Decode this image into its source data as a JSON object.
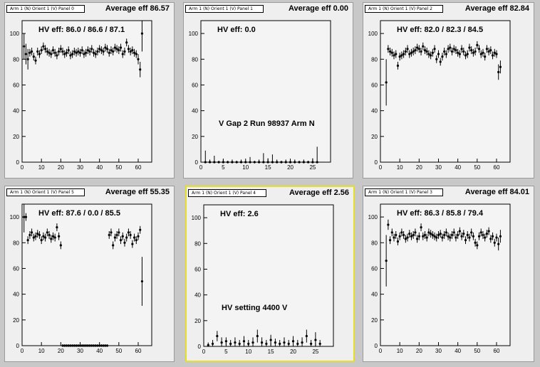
{
  "canvas_bg": "#c8c8c8",
  "pad_bg": "#efefef",
  "active_border": "#e6e02a",
  "panels": [
    {
      "title": "Arm 1 (N) Orient 1 (V) Panel 0",
      "average": "Average eff 86.57",
      "hv": "HV eff:   86.0 / 86.6 / 87.1",
      "note": "",
      "active": false
    },
    {
      "title": "Arm 1 (N) Orient 1 (V) Panel 1",
      "average": "Average eff 0.00",
      "hv": "HV eff:   0.0",
      "note": "V Gap 2 Run 98937 Arm N",
      "active": false
    },
    {
      "title": "Arm 1 (N) Orient 1 (V) Panel 2",
      "average": "Average eff 82.84",
      "hv": "HV eff:   82.0 / 82.3 / 84.5",
      "note": "",
      "active": false
    },
    {
      "title": "Arm 1 (N) Orient 1 (V) Panel 5",
      "average": "Average eff 55.35",
      "hv": "HV eff:   87.6 / 0.0 / 85.5",
      "note": "",
      "active": false
    },
    {
      "title": "Arm 1 (N) Orient 1 (V) Panel 4",
      "average": "Average eff 2.56",
      "hv": "HV eff:   2.6",
      "note": "HV setting 4400 V",
      "active": true
    },
    {
      "title": "Arm 1 (N) Orient 1 (V) Panel 3",
      "average": "Average eff 84.01",
      "hv": "HV eff:   86.3 / 85.8 / 79.4",
      "note": "",
      "active": false
    }
  ],
  "chart_data": [
    {
      "type": "scatter",
      "title": "Arm 1 (N) Orient 1 (V) Panel 0",
      "xlim": [
        0,
        67
      ],
      "ylim": [
        0,
        110
      ],
      "x_ticks": [
        0,
        10,
        20,
        30,
        40,
        50,
        60
      ],
      "y_ticks": [
        0,
        20,
        40,
        60,
        80,
        100
      ],
      "x": [
        1,
        2,
        3,
        4,
        5,
        6,
        7,
        8,
        9,
        10,
        11,
        12,
        13,
        14,
        15,
        16,
        17,
        18,
        19,
        20,
        21,
        22,
        23,
        24,
        25,
        26,
        27,
        28,
        29,
        30,
        31,
        32,
        33,
        34,
        35,
        36,
        37,
        38,
        39,
        40,
        41,
        42,
        43,
        44,
        45,
        46,
        47,
        48,
        49,
        50,
        51,
        52,
        53,
        54,
        55,
        56,
        57,
        58,
        59,
        60,
        61,
        62
      ],
      "y": [
        90,
        84,
        80,
        85,
        86,
        82,
        79,
        86,
        84,
        87,
        90,
        88,
        86,
        85,
        84,
        87,
        85,
        83,
        86,
        88,
        86,
        84,
        85,
        87,
        83,
        84,
        86,
        85,
        86,
        85,
        87,
        84,
        85,
        87,
        86,
        88,
        85,
        84,
        86,
        88,
        87,
        86,
        89,
        88,
        85,
        87,
        86,
        89,
        88,
        87,
        89,
        84,
        86,
        93,
        88,
        86,
        87,
        85,
        84,
        80,
        72,
        100
      ],
      "err": [
        10,
        8,
        8,
        3,
        3,
        3,
        3,
        3,
        3,
        3,
        3,
        3,
        3,
        3,
        3,
        3,
        3,
        3,
        3,
        3,
        3,
        3,
        3,
        3,
        3,
        3,
        3,
        3,
        3,
        3,
        3,
        3,
        3,
        3,
        3,
        3,
        3,
        3,
        3,
        3,
        3,
        3,
        3,
        3,
        3,
        3,
        3,
        3,
        3,
        3,
        3,
        3,
        3,
        3,
        3,
        3,
        3,
        3,
        3,
        4,
        6,
        14
      ]
    },
    {
      "type": "scatter",
      "title": "Arm 1 (N) Orient 1 (V) Panel 1",
      "xlim": [
        0,
        29
      ],
      "ylim": [
        0,
        110
      ],
      "x_ticks": [
        0,
        5,
        10,
        15,
        20,
        25
      ],
      "y_ticks": [
        0,
        20,
        40,
        60,
        80,
        100
      ],
      "x": [
        1,
        2,
        3,
        4,
        5,
        6,
        7,
        8,
        9,
        10,
        11,
        12,
        13,
        14,
        15,
        16,
        17,
        18,
        19,
        20,
        21,
        22,
        23,
        24,
        25,
        26
      ],
      "y": [
        0,
        0,
        0,
        0,
        0,
        0,
        0,
        0,
        0,
        0,
        0,
        0,
        0,
        0,
        0,
        0,
        0,
        0,
        0,
        0,
        0,
        0,
        0,
        0,
        0,
        0
      ],
      "err": [
        9,
        2,
        5,
        1,
        2,
        1,
        2,
        1,
        2,
        1,
        4,
        1,
        2,
        7,
        3,
        6,
        2,
        1,
        2,
        1,
        2,
        1,
        2,
        1,
        3,
        12
      ]
    },
    {
      "type": "scatter",
      "title": "Arm 1 (N) Orient 1 (V) Panel 2",
      "xlim": [
        0,
        67
      ],
      "ylim": [
        0,
        110
      ],
      "x_ticks": [
        0,
        10,
        20,
        30,
        40,
        50,
        60
      ],
      "y_ticks": [
        0,
        20,
        40,
        60,
        80,
        100
      ],
      "x": [
        3,
        4,
        5,
        6,
        7,
        8,
        9,
        10,
        11,
        12,
        13,
        14,
        15,
        16,
        17,
        18,
        19,
        20,
        21,
        22,
        23,
        24,
        25,
        26,
        27,
        28,
        29,
        30,
        31,
        32,
        33,
        34,
        35,
        36,
        37,
        38,
        39,
        40,
        41,
        42,
        43,
        44,
        45,
        46,
        47,
        48,
        49,
        50,
        51,
        52,
        53,
        54,
        55,
        56,
        57,
        58,
        59,
        60,
        61,
        62
      ],
      "y": [
        62,
        88,
        86,
        85,
        83,
        84,
        75,
        82,
        83,
        84,
        86,
        88,
        84,
        85,
        86,
        87,
        89,
        88,
        86,
        90,
        87,
        86,
        84,
        83,
        85,
        88,
        80,
        84,
        78,
        82,
        86,
        84,
        88,
        89,
        86,
        88,
        87,
        85,
        84,
        88,
        86,
        83,
        84,
        89,
        87,
        85,
        86,
        91,
        88,
        84,
        85,
        82,
        88,
        86,
        87,
        83,
        85,
        84,
        70,
        74
      ],
      "err": [
        18,
        3,
        3,
        3,
        3,
        3,
        3,
        3,
        3,
        3,
        3,
        3,
        3,
        3,
        3,
        3,
        3,
        3,
        3,
        3,
        3,
        3,
        3,
        3,
        3,
        3,
        3,
        3,
        3,
        3,
        3,
        3,
        3,
        3,
        3,
        3,
        3,
        3,
        3,
        3,
        3,
        3,
        3,
        3,
        3,
        3,
        3,
        3,
        3,
        3,
        3,
        3,
        3,
        3,
        3,
        3,
        3,
        3,
        6,
        5
      ]
    },
    {
      "type": "scatter",
      "title": "Arm 1 (N) Orient 1 (V) Panel 5",
      "xlim": [
        0,
        67
      ],
      "ylim": [
        0,
        110
      ],
      "x_ticks": [
        0,
        10,
        20,
        30,
        40,
        50,
        60
      ],
      "y_ticks": [
        0,
        20,
        40,
        60,
        80,
        100
      ],
      "x": [
        1,
        2,
        3,
        4,
        5,
        6,
        7,
        8,
        9,
        10,
        11,
        12,
        13,
        14,
        15,
        16,
        17,
        18,
        19,
        20,
        21,
        22,
        23,
        24,
        25,
        26,
        27,
        28,
        29,
        30,
        31,
        32,
        33,
        34,
        35,
        36,
        37,
        38,
        39,
        40,
        41,
        42,
        43,
        44,
        45,
        46,
        47,
        48,
        49,
        50,
        51,
        52,
        53,
        54,
        55,
        56,
        57,
        58,
        59,
        60,
        61,
        62
      ],
      "y": [
        100,
        100,
        82,
        86,
        88,
        84,
        85,
        87,
        86,
        82,
        85,
        84,
        88,
        86,
        83,
        85,
        84,
        92,
        85,
        78,
        0,
        0,
        0,
        0,
        0,
        0,
        0,
        0,
        0,
        0,
        0,
        0,
        0,
        0,
        0,
        0,
        0,
        0,
        0,
        0,
        0,
        0,
        0,
        0,
        86,
        88,
        78,
        84,
        86,
        88,
        82,
        85,
        80,
        84,
        88,
        86,
        79,
        84,
        82,
        85,
        90,
        50
      ],
      "err": [
        12,
        3,
        3,
        3,
        3,
        3,
        3,
        3,
        3,
        3,
        3,
        3,
        3,
        3,
        3,
        3,
        3,
        3,
        3,
        3,
        1,
        1,
        1,
        1,
        1,
        1,
        1,
        1,
        1,
        1,
        1,
        1,
        1,
        1,
        1,
        1,
        1,
        1,
        1,
        1,
        1,
        1,
        1,
        1,
        3,
        3,
        3,
        3,
        3,
        3,
        3,
        3,
        3,
        3,
        3,
        3,
        3,
        3,
        3,
        3,
        3,
        19
      ]
    },
    {
      "type": "scatter",
      "title": "Arm 1 (N) Orient 1 (V) Panel 4",
      "xlim": [
        0,
        29
      ],
      "ylim": [
        0,
        110
      ],
      "x_ticks": [
        0,
        5,
        10,
        15,
        20,
        25
      ],
      "y_ticks": [
        0,
        20,
        40,
        60,
        80,
        100
      ],
      "x": [
        1,
        2,
        3,
        4,
        5,
        6,
        7,
        8,
        9,
        10,
        11,
        12,
        13,
        14,
        15,
        16,
        17,
        18,
        19,
        20,
        21,
        22,
        23,
        24,
        25,
        26
      ],
      "y": [
        1,
        2,
        8,
        3,
        4,
        2,
        3,
        2,
        4,
        2,
        3,
        8,
        3,
        2,
        5,
        3,
        2,
        3,
        2,
        4,
        2,
        3,
        8,
        2,
        5,
        2
      ],
      "err": [
        2,
        3,
        4,
        4,
        3,
        3,
        4,
        3,
        4,
        3,
        4,
        5,
        4,
        3,
        4,
        3,
        3,
        4,
        3,
        4,
        3,
        4,
        5,
        3,
        6,
        3
      ]
    },
    {
      "type": "scatter",
      "title": "Arm 1 (N) Orient 1 (V) Panel 3",
      "xlim": [
        0,
        67
      ],
      "ylim": [
        0,
        110
      ],
      "x_ticks": [
        0,
        10,
        20,
        30,
        40,
        50,
        60
      ],
      "y_ticks": [
        0,
        20,
        40,
        60,
        80,
        100
      ],
      "x": [
        3,
        4,
        5,
        6,
        7,
        8,
        9,
        10,
        11,
        12,
        13,
        14,
        15,
        16,
        17,
        18,
        19,
        20,
        21,
        22,
        23,
        24,
        25,
        26,
        27,
        28,
        29,
        30,
        31,
        32,
        33,
        34,
        35,
        36,
        37,
        38,
        39,
        40,
        41,
        42,
        43,
        44,
        45,
        46,
        47,
        48,
        49,
        50,
        51,
        52,
        53,
        54,
        55,
        56,
        57,
        58,
        59,
        60,
        61,
        62
      ],
      "y": [
        66,
        94,
        82,
        88,
        84,
        86,
        81,
        85,
        88,
        86,
        83,
        84,
        87,
        85,
        86,
        88,
        83,
        85,
        92,
        85,
        86,
        84,
        88,
        87,
        86,
        85,
        84,
        86,
        87,
        84,
        86,
        88,
        85,
        84,
        86,
        88,
        84,
        86,
        89,
        85,
        87,
        82,
        86,
        84,
        88,
        85,
        80,
        78,
        85,
        88,
        86,
        84,
        87,
        89,
        83,
        85,
        80,
        84,
        79,
        85
      ],
      "err": [
        20,
        4,
        3,
        3,
        3,
        3,
        3,
        3,
        3,
        3,
        3,
        3,
        3,
        3,
        3,
        3,
        3,
        3,
        3,
        3,
        3,
        3,
        3,
        3,
        3,
        3,
        3,
        3,
        3,
        3,
        3,
        3,
        3,
        3,
        3,
        3,
        3,
        3,
        3,
        3,
        3,
        3,
        3,
        3,
        3,
        3,
        3,
        3,
        3,
        3,
        3,
        3,
        3,
        3,
        3,
        3,
        3,
        3,
        5,
        5
      ]
    }
  ]
}
